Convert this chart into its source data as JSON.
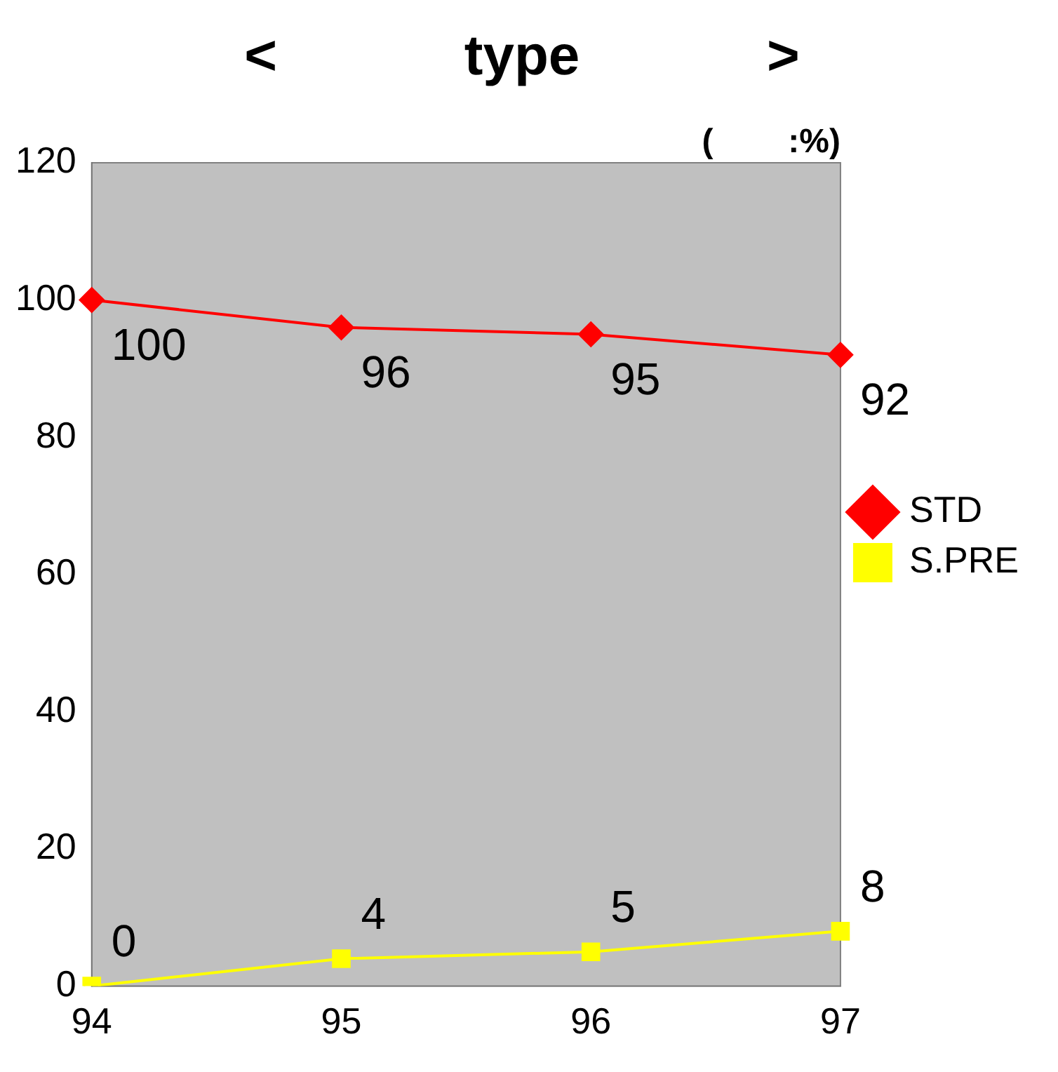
{
  "chart_data": {
    "type": "line",
    "title": "<            type            >",
    "annotations": [
      "(        :%)"
    ],
    "categories": [
      "94",
      "95",
      "96",
      "97"
    ],
    "series": [
      {
        "name": "STD",
        "color": "#ff0000",
        "values": [
          100,
          96,
          95,
          92
        ],
        "marker": "diamond"
      },
      {
        "name": "S.PRE",
        "color": "#ffff00",
        "values": [
          0,
          4,
          5,
          8
        ],
        "marker": "square"
      }
    ],
    "ylim": [
      0,
      120
    ],
    "yticks": [
      0,
      20,
      40,
      60,
      80,
      100,
      120
    ],
    "grid": false,
    "legend": "right",
    "data_labels": true
  }
}
